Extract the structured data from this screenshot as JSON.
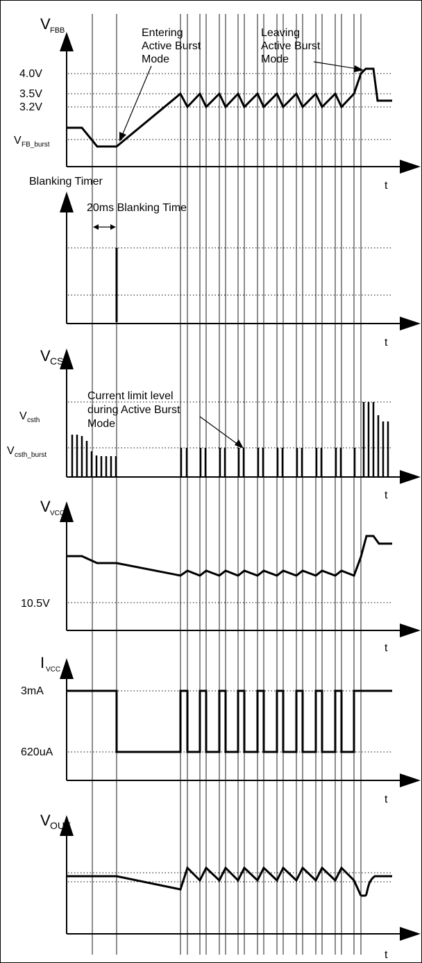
{
  "diagram": {
    "panels": {
      "vfbb": {
        "axis_label": "V",
        "axis_sub": "FBB",
        "levels": [
          "4.0V",
          "3.5V",
          "3.2V"
        ],
        "burst_label": "V",
        "burst_sub": "FB_burst",
        "t": "t",
        "annotations": {
          "entering": [
            "Entering",
            "Active Burst",
            "Mode"
          ],
          "leaving": [
            "Leaving",
            "Active Burst",
            "Mode"
          ]
        }
      },
      "blanking": {
        "axis_label": "Blanking Timer",
        "time_label": "20ms Blanking Time",
        "t": "t"
      },
      "vcs": {
        "axis_label": "V",
        "axis_sub": "CS",
        "csth": "V",
        "csth_sub": "csth",
        "csth_burst": "V",
        "csth_burst_sub": "csth_burst",
        "annotation": [
          "Current limit level",
          "during Active Burst",
          "Mode"
        ],
        "t": "t"
      },
      "vvcc": {
        "axis_label": "V",
        "axis_sub": "VCC",
        "level": "10.5V",
        "t": "t"
      },
      "ivcc": {
        "axis_label": "I",
        "axis_sub": "VCC",
        "high": "3mA",
        "low": "620uA",
        "t": "t"
      },
      "vout": {
        "axis_label": "V",
        "axis_sub": "OUT",
        "t": "t"
      }
    }
  }
}
